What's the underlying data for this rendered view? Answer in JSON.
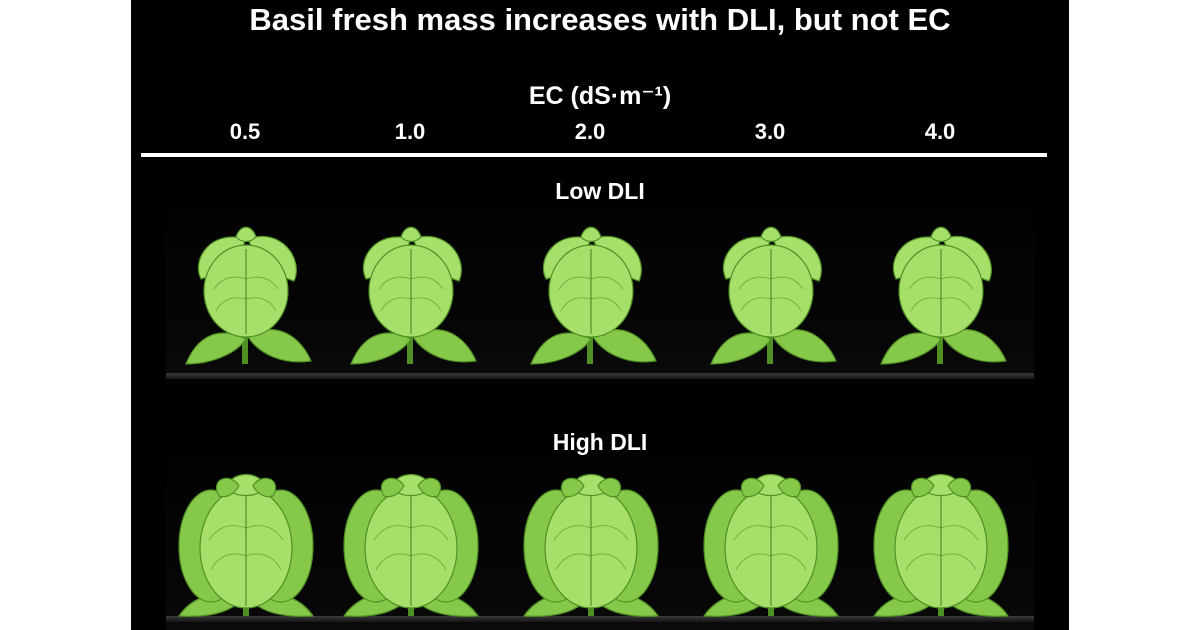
{
  "title": "Basil fresh mass increases with DLI, but not EC",
  "ec_label": "EC (dS·m⁻¹)",
  "ec_values": [
    "0.5",
    "1.0",
    "2.0",
    "3.0",
    "4.0"
  ],
  "rows": [
    {
      "label": "Low DLI",
      "plant": "small-basil-plant"
    },
    {
      "label": "High DLI",
      "plant": "large-basil-plant"
    }
  ],
  "colors": {
    "background": "#000000",
    "text": "#ffffff",
    "leaf_light": "#a6e06a",
    "leaf_mid": "#86c94a",
    "leaf_dark": "#4f8f24"
  }
}
